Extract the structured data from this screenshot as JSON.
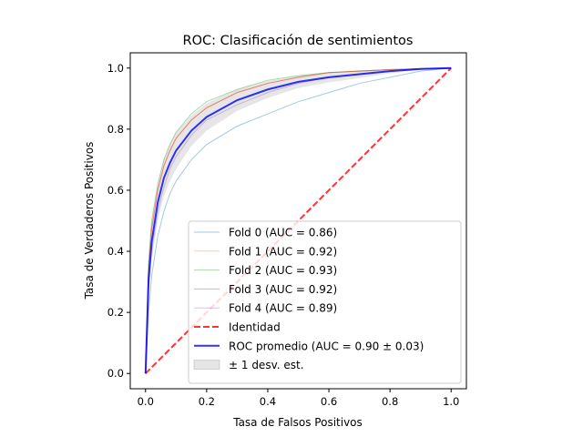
{
  "chart_data": {
    "type": "line",
    "title": "ROC: Clasificación de sentimientos",
    "xlabel": "Tasa de Falsos Positivos",
    "ylabel": "Tasa de Verdaderos Positivos",
    "xlim": [
      -0.05,
      1.05
    ],
    "ylim": [
      -0.05,
      1.05
    ],
    "xticks": [
      "0.0",
      "0.2",
      "0.4",
      "0.6",
      "0.8",
      "1.0"
    ],
    "yticks": [
      "0.0",
      "0.2",
      "0.4",
      "0.6",
      "0.8",
      "1.0"
    ],
    "grid": false,
    "legend_position": "lower-right",
    "x": [
      0.0,
      0.01,
      0.02,
      0.04,
      0.06,
      0.08,
      0.1,
      0.15,
      0.2,
      0.3,
      0.4,
      0.5,
      0.6,
      0.7,
      0.8,
      0.9,
      1.0
    ],
    "series": [
      {
        "name": "Fold 0 (AUC = 0.86)",
        "color": "#1f77b4",
        "values": [
          0.0,
          0.2,
          0.32,
          0.45,
          0.53,
          0.59,
          0.63,
          0.7,
          0.75,
          0.81,
          0.85,
          0.89,
          0.92,
          0.95,
          0.97,
          0.99,
          1.0
        ]
      },
      {
        "name": "Fold 1 (AUC = 0.92)",
        "color": "#ff7f0e",
        "values": [
          0.0,
          0.35,
          0.48,
          0.6,
          0.68,
          0.73,
          0.77,
          0.83,
          0.87,
          0.92,
          0.95,
          0.97,
          0.985,
          0.99,
          0.995,
          0.998,
          1.0
        ]
      },
      {
        "name": "Fold 2 (AUC = 0.93)",
        "color": "#2ca02c",
        "values": [
          0.0,
          0.37,
          0.5,
          0.62,
          0.7,
          0.75,
          0.79,
          0.85,
          0.89,
          0.93,
          0.96,
          0.975,
          0.985,
          0.99,
          0.995,
          0.998,
          1.0
        ]
      },
      {
        "name": "Fold 3 (AUC = 0.92)",
        "color": "#d62728",
        "values": [
          0.0,
          0.34,
          0.47,
          0.6,
          0.68,
          0.73,
          0.77,
          0.83,
          0.87,
          0.92,
          0.95,
          0.97,
          0.985,
          0.99,
          0.995,
          0.998,
          1.0
        ]
      },
      {
        "name": "Fold 4 (AUC = 0.89)",
        "color": "#9467bd",
        "values": [
          0.0,
          0.28,
          0.4,
          0.53,
          0.61,
          0.67,
          0.71,
          0.78,
          0.83,
          0.88,
          0.92,
          0.95,
          0.97,
          0.98,
          0.99,
          0.997,
          1.0
        ]
      }
    ],
    "identity": {
      "name": "Identidad",
      "color": "#ff0000",
      "x": [
        0.0,
        1.0
      ],
      "y": [
        0.0,
        1.0
      ]
    },
    "mean": {
      "name": "ROC promedio (AUC = 0.90 ± 0.03)",
      "color": "#0000ff",
      "values": [
        0.0,
        0.31,
        0.43,
        0.56,
        0.64,
        0.69,
        0.73,
        0.795,
        0.84,
        0.895,
        0.93,
        0.955,
        0.97,
        0.98,
        0.99,
        0.997,
        1.0
      ]
    },
    "band": {
      "name": "± 1 desv. est.",
      "color": "#808080",
      "upper": [
        0.0,
        0.37,
        0.49,
        0.62,
        0.7,
        0.75,
        0.79,
        0.845,
        0.885,
        0.93,
        0.958,
        0.975,
        0.987,
        0.993,
        0.997,
        0.999,
        1.0
      ],
      "lower": [
        0.0,
        0.25,
        0.37,
        0.5,
        0.58,
        0.63,
        0.67,
        0.745,
        0.795,
        0.86,
        0.902,
        0.935,
        0.953,
        0.967,
        0.983,
        0.995,
        1.0
      ]
    }
  }
}
